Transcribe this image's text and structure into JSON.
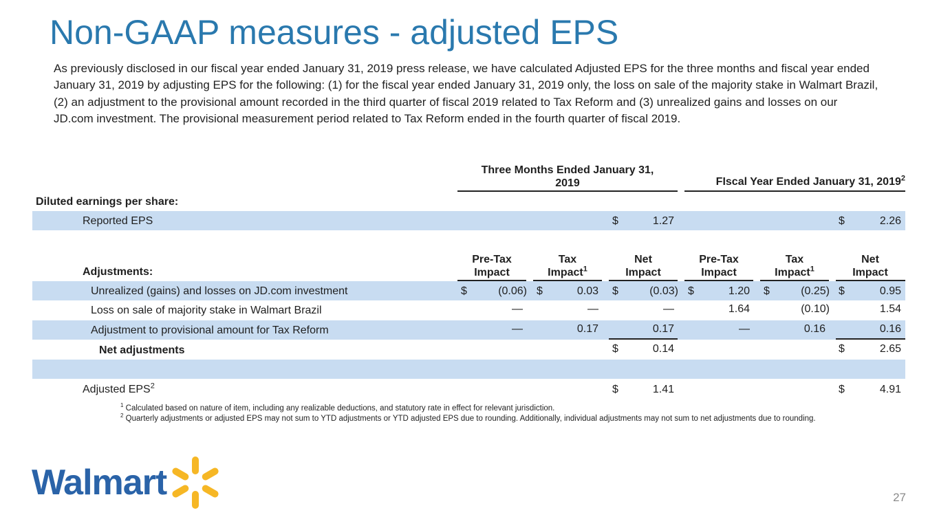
{
  "title": "Non-GAAP measures - adjusted EPS",
  "intro": "As previously disclosed in our fiscal year ended January 31, 2019 press release, we have calculated Adjusted EPS for the three months and fiscal year ended January 31, 2019 by adjusting EPS for the following: (1) for the fiscal year ended January 31, 2019 only, the loss on sale of the majority stake in Walmart Brazil, (2) an adjustment to the provisional amount recorded in the third quarter of fiscal 2019 related to Tax Reform and (3) unrealized gains and losses on our JD.com investment.  The provisional measurement period related to Tax Reform ended in the fourth quarter of fiscal 2019.",
  "table": {
    "period_headers": {
      "three_months_line1": "Three Months Ended January 31,",
      "three_months_line2": "2019",
      "fiscal_year": "FIscal Year Ended January 31, 2019",
      "fiscal_year_sup": "2"
    },
    "diluted_label": "Diluted earnings per share:",
    "reported": {
      "label": "Reported EPS",
      "q_sym": "$",
      "q_val": "1.27",
      "fy_sym": "$",
      "fy_val": "2.26"
    },
    "adjustments_label": "Adjustments:",
    "col_headers": [
      {
        "line1": "Pre-Tax",
        "line2": "Impact",
        "sup": ""
      },
      {
        "line1": "Tax",
        "line2": "Impact",
        "sup": "1"
      },
      {
        "line1": "Net",
        "line2": "Impact",
        "sup": ""
      },
      {
        "line1": "Pre-Tax",
        "line2": "Impact",
        "sup": ""
      },
      {
        "line1": "Tax",
        "line2": "Impact",
        "sup": "1"
      },
      {
        "line1": "Net",
        "line2": "Impact",
        "sup": ""
      }
    ],
    "rows": [
      {
        "label": "Unrealized (gains) and losses on JD.com investment",
        "syms": [
          "$",
          "$",
          "$",
          "$",
          "$",
          "$"
        ],
        "vals": [
          "(0.06)",
          "0.03",
          "(0.03)",
          "1.20",
          "(0.25)",
          "0.95"
        ]
      },
      {
        "label": "Loss on sale of majority stake in Walmart Brazil",
        "syms": [
          "",
          "",
          "",
          "",
          "",
          ""
        ],
        "vals": [
          "—",
          "—",
          "—",
          "1.64",
          "(0.10)",
          "1.54"
        ]
      },
      {
        "label": "Adjustment to provisional amount for Tax Reform",
        "syms": [
          "",
          "",
          "",
          "",
          "",
          ""
        ],
        "vals": [
          "—",
          "0.17",
          "0.17",
          "—",
          "0.16",
          "0.16"
        ]
      }
    ],
    "net_adjustments": {
      "label": "Net adjustments",
      "q_sym": "$",
      "q_val": "0.14",
      "fy_sym": "$",
      "fy_val": "2.65"
    },
    "adjusted": {
      "label": "Adjusted EPS",
      "sup": "2",
      "q_sym": "$",
      "q_val": "1.41",
      "fy_sym": "$",
      "fy_val": "4.91"
    }
  },
  "footnotes": [
    {
      "num": "1",
      "text": "Calculated based on nature of item, including any realizable deductions, and statutory rate in effect for relevant jurisdiction."
    },
    {
      "num": "2",
      "text": "Quarterly adjustments or adjusted EPS may not sum to YTD adjustments or YTD adjusted EPS due to rounding. Additionally, individual adjustments may not sum to net adjustments due to rounding."
    }
  ],
  "logo": {
    "text": "Walmart",
    "icon": "spark-icon",
    "brand_blue": "#2a63a8",
    "spark_yellow": "#f6b725"
  },
  "page_number": "27",
  "colors": {
    "title": "#2a79ae",
    "band": "#c8dcf1"
  }
}
